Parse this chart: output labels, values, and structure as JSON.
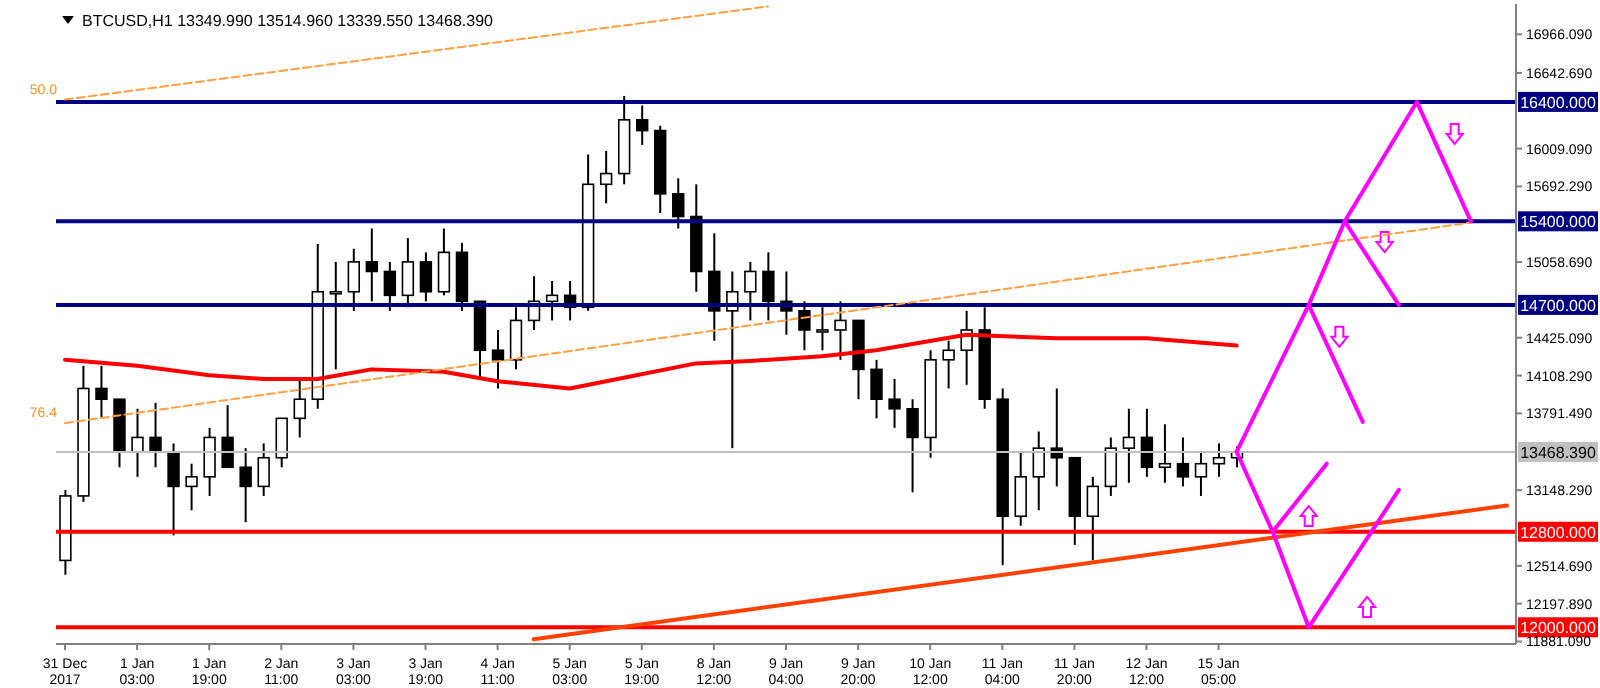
{
  "chart_data": {
    "type": "candlestick",
    "title": "BTCUSD,H1  13349.990 13514.960 13339.550 13468.390",
    "categories": [
      "31 Dec 2017",
      null,
      null,
      null,
      "1 Jan 03:00",
      null,
      null,
      null,
      "1 Jan 19:00",
      null,
      null,
      null,
      "2 Jan 11:00",
      null,
      null,
      null,
      "3 Jan 03:00",
      null,
      null,
      null,
      "3 Jan 19:00",
      null,
      null,
      null,
      "4 Jan 11:00",
      null,
      null,
      null,
      "5 Jan 03:00",
      null,
      null,
      null,
      "5 Jan 19:00",
      null,
      null,
      null,
      "8 Jan 12:00",
      null,
      null,
      null,
      "9 Jan 04:00",
      null,
      null,
      null,
      "9 Jan 20:00",
      null,
      null,
      null,
      "10 Jan 12:00",
      null,
      null,
      null,
      "11 Jan 04:00",
      null,
      null,
      null,
      "11 Jan 20:00",
      null,
      null,
      null,
      "12 Jan 12:00",
      null,
      null,
      null,
      "15 Jan 05:00",
      null,
      null,
      null,
      null,
      null,
      null,
      null,
      null,
      null,
      null,
      null,
      null,
      null,
      null,
      null,
      null
    ],
    "ohlc": [
      [
        12560,
        13150,
        12440,
        13100
      ],
      [
        13100,
        14190,
        13050,
        14000
      ],
      [
        14000,
        14190,
        13750,
        13910
      ],
      [
        13910,
        13910,
        13340,
        13470
      ],
      [
        13470,
        13830,
        13260,
        13590
      ],
      [
        13590,
        13880,
        13340,
        13470
      ],
      [
        13470,
        13540,
        12770,
        13180
      ],
      [
        13180,
        13370,
        12980,
        13260
      ],
      [
        13260,
        13670,
        13100,
        13590
      ],
      [
        13590,
        13860,
        13340,
        13340
      ],
      [
        13340,
        13500,
        12880,
        13180
      ],
      [
        13180,
        13540,
        13100,
        13420
      ],
      [
        13420,
        13750,
        13340,
        13750
      ],
      [
        13750,
        14080,
        13590,
        13910
      ],
      [
        13910,
        15210,
        13830,
        14810
      ],
      [
        14810,
        15060,
        14160,
        14810
      ],
      [
        14810,
        15170,
        14650,
        15060
      ],
      [
        15060,
        15340,
        14730,
        14980
      ],
      [
        14980,
        15060,
        14650,
        14780
      ],
      [
        14780,
        15260,
        14680,
        15060
      ],
      [
        15060,
        15140,
        14730,
        14810
      ],
      [
        14810,
        15340,
        14780,
        15140
      ],
      [
        15140,
        15220,
        14650,
        14730
      ],
      [
        14730,
        14730,
        14080,
        14320
      ],
      [
        14320,
        14490,
        14000,
        14240
      ],
      [
        14240,
        14680,
        14160,
        14570
      ],
      [
        14570,
        14940,
        14490,
        14730
      ],
      [
        14730,
        14900,
        14570,
        14780
      ],
      [
        14780,
        14900,
        14570,
        14680
      ],
      [
        14680,
        15960,
        14650,
        15710
      ],
      [
        15710,
        15990,
        15550,
        15800
      ],
      [
        15800,
        16450,
        15710,
        16250
      ],
      [
        16250,
        16370,
        16040,
        16160
      ],
      [
        16160,
        16200,
        15470,
        15630
      ],
      [
        15630,
        15760,
        15340,
        15440
      ],
      [
        15440,
        15710,
        14810,
        14980
      ],
      [
        14980,
        15300,
        14400,
        14650
      ],
      [
        14650,
        14980,
        13500,
        14810
      ],
      [
        14810,
        15060,
        14570,
        14980
      ],
      [
        14980,
        15140,
        14570,
        14730
      ],
      [
        14730,
        14980,
        14450,
        14650
      ],
      [
        14650,
        14730,
        14320,
        14490
      ],
      [
        14490,
        14680,
        14320,
        14490
      ],
      [
        14490,
        14730,
        14240,
        14570
      ],
      [
        14570,
        14570,
        13910,
        14160
      ],
      [
        14160,
        14240,
        13750,
        13910
      ],
      [
        13910,
        14080,
        13670,
        13830
      ],
      [
        13830,
        13910,
        13130,
        13590
      ],
      [
        13590,
        14320,
        13420,
        14240
      ],
      [
        14240,
        14400,
        14000,
        14320
      ],
      [
        14320,
        14650,
        14030,
        14490
      ],
      [
        14490,
        14680,
        13830,
        13910
      ],
      [
        13910,
        14000,
        12520,
        12930
      ],
      [
        12930,
        13470,
        12850,
        13260
      ],
      [
        13260,
        13640,
        12980,
        13500
      ],
      [
        13500,
        14000,
        13180,
        13420
      ],
      [
        13420,
        13420,
        12690,
        12930
      ],
      [
        12930,
        13260,
        12560,
        13180
      ],
      [
        13180,
        13590,
        13100,
        13500
      ],
      [
        13500,
        13830,
        13210,
        13590
      ],
      [
        13590,
        13830,
        13260,
        13340
      ],
      [
        13340,
        13700,
        13210,
        13370
      ],
      [
        13370,
        13590,
        13180,
        13260
      ],
      [
        13260,
        13470,
        13100,
        13370
      ],
      [
        13370,
        13540,
        13260,
        13420
      ],
      [
        13420,
        13514.96,
        13339.55,
        13468.39
      ],
      null,
      null,
      null,
      null,
      null,
      null,
      null,
      null,
      null,
      null,
      null,
      null,
      null,
      null,
      null
    ],
    "series": [
      {
        "type": "line",
        "color": "#ff0000",
        "line_style": "solid",
        "values": [
          14240,
          null,
          null,
          null,
          14190,
          null,
          null,
          null,
          14110,
          null,
          null,
          14080,
          null,
          null,
          14080,
          null,
          null,
          14160,
          null,
          null,
          null,
          14140,
          null,
          null,
          14060,
          null,
          null,
          null,
          14000,
          null,
          null,
          14090,
          null,
          null,
          null,
          14210,
          null,
          null,
          14230,
          null,
          null,
          null,
          14270,
          null,
          null,
          14320,
          null,
          null,
          null,
          null,
          14450,
          null,
          null,
          null,
          null,
          14420,
          null,
          null,
          null,
          null,
          14420,
          null,
          null,
          null,
          null,
          14360,
          null,
          null,
          null,
          null,
          null,
          null,
          null,
          null,
          null,
          null,
          null,
          null,
          null,
          null,
          null
        ]
      },
      {
        "type": "line",
        "color": "#ffa040",
        "line_style": "dashed",
        "values": [
          16420,
          null,
          null,
          null,
          null,
          null,
          null,
          null,
          null,
          null,
          null,
          null,
          null,
          null,
          null,
          null,
          null,
          null,
          null,
          null,
          null,
          null,
          null,
          null,
          null,
          null,
          null,
          null,
          null,
          null,
          null,
          null,
          null,
          null,
          null,
          null,
          null,
          null,
          null,
          17200,
          null,
          null,
          null,
          null,
          null,
          null,
          null,
          null,
          null,
          null,
          null,
          null,
          null,
          null,
          null,
          null,
          null,
          null,
          null,
          null,
          null,
          null,
          null,
          null,
          null,
          null,
          null,
          null,
          null,
          null,
          null,
          null,
          null,
          null,
          null,
          null,
          null,
          null,
          null,
          null,
          null
        ]
      },
      {
        "type": "line",
        "color": "#ffa040",
        "line_style": "dashed",
        "values": [
          13710,
          null,
          null,
          null,
          null,
          null,
          null,
          null,
          null,
          null,
          null,
          null,
          null,
          null,
          null,
          null,
          null,
          null,
          null,
          null,
          null,
          null,
          null,
          null,
          null,
          null,
          null,
          null,
          null,
          null,
          null,
          null,
          null,
          null,
          null,
          null,
          null,
          null,
          null,
          null,
          null,
          null,
          null,
          null,
          null,
          null,
          null,
          null,
          null,
          null,
          null,
          null,
          null,
          null,
          null,
          null,
          null,
          null,
          null,
          null,
          null,
          null,
          null,
          null,
          null,
          null,
          null,
          null,
          null,
          null,
          null,
          null,
          null,
          null,
          null,
          null,
          null,
          null,
          15390,
          null,
          null
        ]
      },
      {
        "type": "line",
        "color": "#ff4000",
        "line_style": "solid",
        "values": [
          null,
          null,
          null,
          null,
          null,
          null,
          null,
          null,
          null,
          null,
          null,
          null,
          null,
          null,
          null,
          null,
          null,
          null,
          null,
          null,
          null,
          null,
          null,
          null,
          null,
          null,
          11900,
          null,
          null,
          null,
          null,
          null,
          null,
          null,
          null,
          null,
          null,
          null,
          null,
          null,
          null,
          null,
          null,
          null,
          null,
          null,
          null,
          null,
          null,
          null,
          null,
          null,
          null,
          null,
          null,
          null,
          null,
          null,
          null,
          null,
          null,
          null,
          null,
          null,
          null,
          null,
          null,
          null,
          null,
          null,
          null,
          null,
          null,
          null,
          null,
          null,
          null,
          null,
          null,
          null,
          13020
        ]
      },
      {
        "type": "line",
        "color": "#ff00ff",
        "line_style": "solid",
        "values": [
          null,
          null,
          null,
          null,
          null,
          null,
          null,
          null,
          null,
          null,
          null,
          null,
          null,
          null,
          null,
          null,
          null,
          null,
          null,
          null,
          null,
          null,
          null,
          null,
          null,
          null,
          null,
          null,
          null,
          null,
          null,
          null,
          null,
          null,
          null,
          null,
          null,
          null,
          null,
          null,
          null,
          null,
          null,
          null,
          null,
          null,
          null,
          null,
          null,
          null,
          null,
          null,
          null,
          null,
          null,
          null,
          null,
          null,
          null,
          null,
          null,
          null,
          null,
          null,
          null,
          13470,
          null,
          null,
          null,
          14700,
          null,
          15400,
          null,
          null,
          null,
          16400,
          null,
          null,
          15400,
          null,
          null
        ]
      },
      {
        "type": "line",
        "color": "#ff00ff",
        "line_style": "solid",
        "values": [
          null,
          null,
          null,
          null,
          null,
          null,
          null,
          null,
          null,
          null,
          null,
          null,
          null,
          null,
          null,
          null,
          null,
          null,
          null,
          null,
          null,
          null,
          null,
          null,
          null,
          null,
          null,
          null,
          null,
          null,
          null,
          null,
          null,
          null,
          null,
          null,
          null,
          null,
          null,
          null,
          null,
          null,
          null,
          null,
          null,
          null,
          null,
          null,
          null,
          null,
          null,
          null,
          null,
          null,
          null,
          null,
          null,
          null,
          null,
          null,
          null,
          null,
          null,
          null,
          null,
          null,
          null,
          null,
          null,
          14700,
          null,
          null,
          13720,
          null,
          null,
          null,
          null,
          null,
          null,
          null,
          null
        ]
      },
      {
        "type": "line",
        "color": "#ff00ff",
        "line_style": "solid",
        "values": [
          null,
          null,
          null,
          null,
          null,
          null,
          null,
          null,
          null,
          null,
          null,
          null,
          null,
          null,
          null,
          null,
          null,
          null,
          null,
          null,
          null,
          null,
          null,
          null,
          null,
          null,
          null,
          null,
          null,
          null,
          null,
          null,
          null,
          null,
          null,
          null,
          null,
          null,
          null,
          null,
          null,
          null,
          null,
          null,
          null,
          null,
          null,
          null,
          null,
          null,
          null,
          null,
          null,
          null,
          null,
          null,
          null,
          null,
          null,
          null,
          null,
          null,
          null,
          null,
          null,
          null,
          null,
          null,
          null,
          null,
          null,
          15400,
          null,
          null,
          14700,
          null,
          null,
          null,
          null,
          null,
          null
        ]
      },
      {
        "type": "line",
        "color": "#ff00ff",
        "line_style": "solid",
        "values": [
          null,
          null,
          null,
          null,
          null,
          null,
          null,
          null,
          null,
          null,
          null,
          null,
          null,
          null,
          null,
          null,
          null,
          null,
          null,
          null,
          null,
          null,
          null,
          null,
          null,
          null,
          null,
          null,
          null,
          null,
          null,
          null,
          null,
          null,
          null,
          null,
          null,
          null,
          null,
          null,
          null,
          null,
          null,
          null,
          null,
          null,
          null,
          null,
          null,
          null,
          null,
          null,
          null,
          null,
          null,
          null,
          null,
          null,
          null,
          null,
          null,
          null,
          null,
          null,
          null,
          13470,
          null,
          12800,
          null,
          12000,
          null,
          null,
          null,
          null,
          13150,
          null,
          null,
          null,
          null,
          null,
          null
        ]
      },
      {
        "type": "line",
        "color": "#ff00ff",
        "line_style": "solid",
        "values": [
          null,
          null,
          null,
          null,
          null,
          null,
          null,
          null,
          null,
          null,
          null,
          null,
          null,
          null,
          null,
          null,
          null,
          null,
          null,
          null,
          null,
          null,
          null,
          null,
          null,
          null,
          null,
          null,
          null,
          null,
          null,
          null,
          null,
          null,
          null,
          null,
          null,
          null,
          null,
          null,
          null,
          null,
          null,
          null,
          null,
          null,
          null,
          null,
          null,
          null,
          null,
          null,
          null,
          null,
          null,
          null,
          null,
          null,
          null,
          null,
          null,
          null,
          null,
          null,
          null,
          null,
          null,
          12800,
          null,
          null,
          13370,
          null,
          null,
          null,
          null,
          null,
          null,
          null,
          null,
          null,
          null
        ]
      }
    ],
    "ylim": [
      11860,
      17220
    ],
    "yticks": [
      {
        "value": 16966.09,
        "label": "16966.090"
      },
      {
        "value": 16642.69,
        "label": "16642.690"
      },
      {
        "value": 16009.09,
        "label": "16009.090"
      },
      {
        "value": 15692.29,
        "label": "15692.290"
      },
      {
        "value": 15058.69,
        "label": "15058.690"
      },
      {
        "value": 14425.09,
        "label": "14425.090"
      },
      {
        "value": 14108.29,
        "label": "14108.290"
      },
      {
        "value": 13791.49,
        "label": "13791.490"
      },
      {
        "value": 13148.29,
        "label": "13148.290"
      },
      {
        "value": 12514.69,
        "label": "12514.690"
      },
      {
        "value": 12197.89,
        "label": "12197.890"
      },
      {
        "value": 11881.09,
        "label": "11881.090"
      }
    ],
    "ref_lines": [
      {
        "axis": "y",
        "value": 16400,
        "label": "16400.000",
        "color": "#000080"
      },
      {
        "axis": "y",
        "value": 15400,
        "label": "15400.000",
        "color": "#000080"
      },
      {
        "axis": "y",
        "value": 14700,
        "label": "14700.000",
        "color": "#000080"
      },
      {
        "axis": "y",
        "value": 13468.39,
        "label": "13468.390",
        "color": "#c0c0c0"
      },
      {
        "axis": "y",
        "value": 12800,
        "label": "12800.000",
        "color": "#ff0000"
      },
      {
        "axis": "y",
        "value": 12000,
        "label": "12000.000",
        "color": "#ff0000"
      }
    ],
    "annotations": [
      {
        "text": "50.0",
        "x": "31 Dec 2017",
        "y": 16420
      },
      {
        "text": "76.4",
        "x": "31 Dec 2017",
        "y": 13710
      }
    ],
    "legend": false,
    "grid": false
  }
}
